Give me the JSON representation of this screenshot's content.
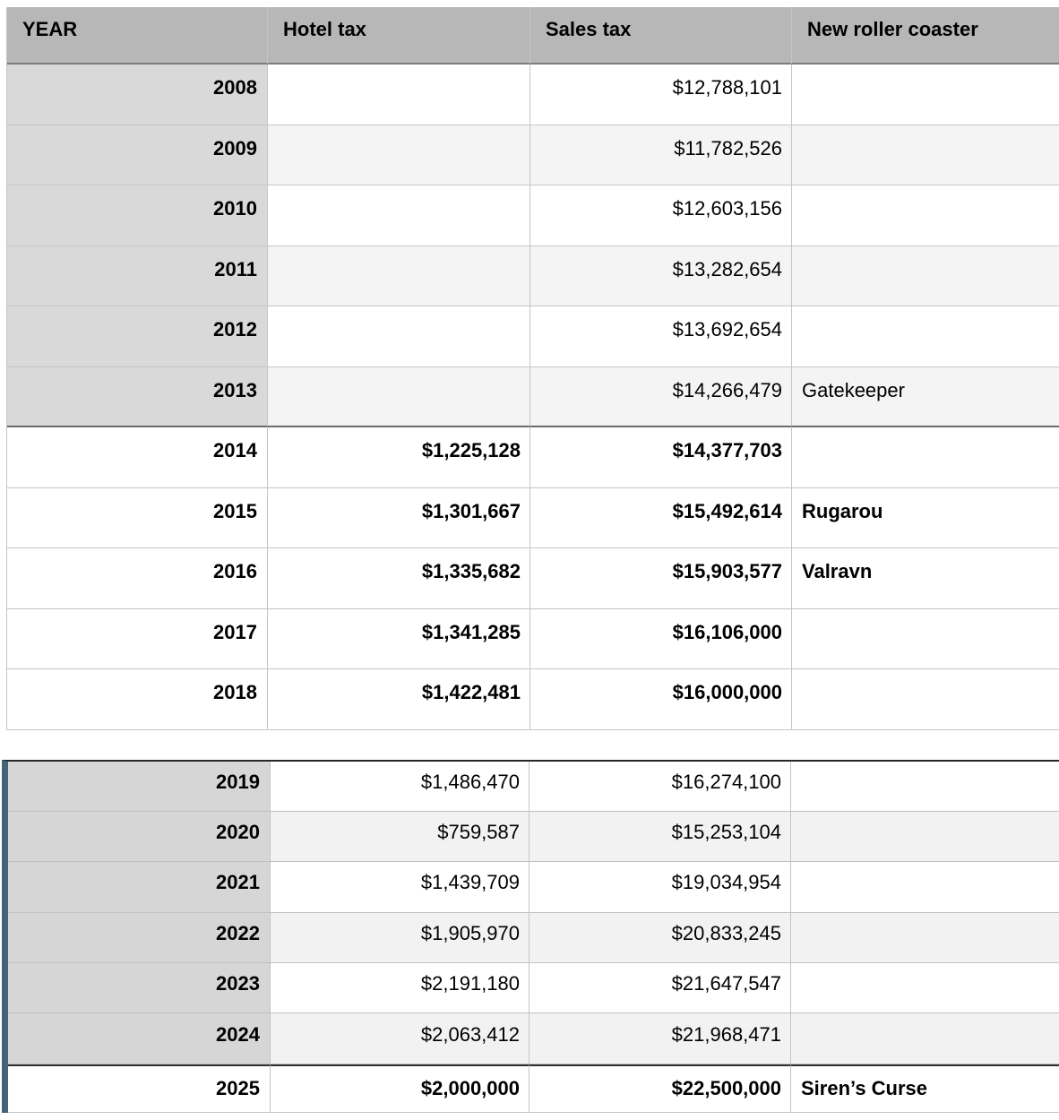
{
  "columns": {
    "year": "YEAR",
    "hotel": "Hotel tax",
    "sales": "Sales tax",
    "coaster": "New roller coaster"
  },
  "table1": {
    "rows": [
      {
        "year": "2008",
        "hotel": "",
        "sales": "$12,788,101",
        "coaster": ""
      },
      {
        "year": "2009",
        "hotel": "",
        "sales": "$11,782,526",
        "coaster": ""
      },
      {
        "year": "2010",
        "hotel": "",
        "sales": "$12,603,156",
        "coaster": ""
      },
      {
        "year": "2011",
        "hotel": "",
        "sales": "$13,282,654",
        "coaster": ""
      },
      {
        "year": "2012",
        "hotel": "",
        "sales": "$13,692,654",
        "coaster": ""
      },
      {
        "year": "2013",
        "hotel": "",
        "sales": "$14,266,479",
        "coaster": "Gatekeeper"
      },
      {
        "year": "2014",
        "hotel": "$1,225,128",
        "sales": "$14,377,703",
        "coaster": ""
      },
      {
        "year": "2015",
        "hotel": "$1,301,667",
        "sales": "$15,492,614",
        "coaster": "Rugarou"
      },
      {
        "year": "2016",
        "hotel": "$1,335,682",
        "sales": "$15,903,577",
        "coaster": "Valravn"
      },
      {
        "year": "2017",
        "hotel": "$1,341,285",
        "sales": "$16,106,000",
        "coaster": ""
      },
      {
        "year": "2018",
        "hotel": "$1,422,481",
        "sales": "$16,000,000",
        "coaster": ""
      }
    ]
  },
  "table2": {
    "rows": [
      {
        "year": "2019",
        "hotel": "$1,486,470",
        "sales": "$16,274,100",
        "coaster": ""
      },
      {
        "year": "2020",
        "hotel": "$759,587",
        "sales": "$15,253,104",
        "coaster": ""
      },
      {
        "year": "2021",
        "hotel": "$1,439,709",
        "sales": "$19,034,954",
        "coaster": ""
      },
      {
        "year": "2022",
        "hotel": "$1,905,970",
        "sales": "$20,833,245",
        "coaster": ""
      },
      {
        "year": "2023",
        "hotel": "$2,191,180",
        "sales": "$21,647,547",
        "coaster": ""
      },
      {
        "year": "2024",
        "hotel": "$2,063,412",
        "sales": "$21,968,471",
        "coaster": ""
      },
      {
        "year": "2025",
        "hotel": "$2,000,000",
        "sales": "$22,500,000",
        "coaster": "Siren’s Curse"
      }
    ]
  },
  "colors": {
    "header_bg": "#b7b7b7",
    "year_cell_bg": "#d9d9d9",
    "alt_row_bg": "#f4f4f4",
    "t2_year_cell_bg": "#d6d6d6",
    "t2_alt_row_bg": "#f2f2f2",
    "accent_left_border": "#46637a",
    "grid_line": "#c5c5c5",
    "strong_line": "#6b6b6b",
    "t2_top_line": "#262626"
  }
}
